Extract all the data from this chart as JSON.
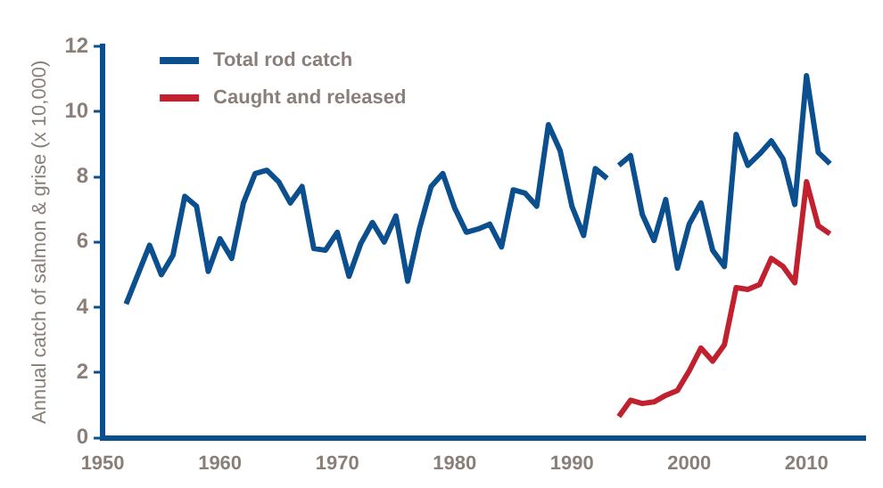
{
  "chart_data": {
    "type": "line",
    "ylabel": "Annual catch of salmon & grise (x 10,000)",
    "xlim": [
      1950,
      2015
    ],
    "xticks": [
      1950,
      1960,
      1970,
      1980,
      1990,
      2000,
      2010
    ],
    "ylim": [
      0,
      12
    ],
    "yticks": [
      0,
      2,
      4,
      6,
      8,
      10,
      12
    ],
    "grid": false,
    "legend": "top left",
    "marker": "none",
    "line_style": "solid",
    "series": [
      {
        "name": "Total rod catch",
        "color": "#0b4f8f",
        "x": [
          1952,
          1953,
          1954,
          1955,
          1956,
          1957,
          1958,
          1959,
          1960,
          1961,
          1962,
          1963,
          1964,
          1965,
          1966,
          1967,
          1968,
          1969,
          1970,
          1971,
          1972,
          1973,
          1974,
          1975,
          1976,
          1977,
          1978,
          1979,
          1980,
          1981,
          1982,
          1983,
          1984,
          1985,
          1986,
          1987,
          1988,
          1989,
          1990,
          1991,
          1992,
          1993
        ],
        "values": [
          4.1,
          5.0,
          5.9,
          5.0,
          5.6,
          7.4,
          7.1,
          5.1,
          6.1,
          5.5,
          7.2,
          8.1,
          8.2,
          7.85,
          7.2,
          7.7,
          5.8,
          5.75,
          6.3,
          4.95,
          5.95,
          6.6,
          6.0,
          6.8,
          4.8,
          6.4,
          7.7,
          8.1,
          7.05,
          6.3,
          6.4,
          6.55,
          5.85,
          7.6,
          7.5,
          7.1,
          9.6,
          8.8,
          7.1,
          6.2,
          8.25,
          7.95
        ]
      },
      {
        "color": "#0b4f8f",
        "x": [
          1994,
          1995,
          1996,
          1997,
          1998,
          1999,
          2000,
          2001,
          2002,
          2003,
          2004,
          2005,
          2006,
          2007,
          2008,
          2009,
          2010,
          2011,
          2012
        ],
        "values": [
          8.35,
          8.65,
          6.85,
          6.05,
          7.3,
          5.2,
          6.55,
          7.2,
          5.75,
          5.25,
          9.3,
          8.35,
          8.7,
          9.1,
          8.55,
          7.15,
          11.1,
          8.75,
          8.4
        ]
      },
      {
        "name": "Caught and released",
        "color": "#c1202f",
        "x": [
          1994,
          1995,
          1996,
          1997,
          1998,
          1999,
          2000,
          2001,
          2002,
          2003,
          2004,
          2005,
          2006,
          2007,
          2008,
          2009,
          2010,
          2011,
          2012
        ],
        "values": [
          0.65,
          1.15,
          1.05,
          1.1,
          1.3,
          1.45,
          2.05,
          2.75,
          2.35,
          2.85,
          4.6,
          4.55,
          4.7,
          5.5,
          5.25,
          4.75,
          7.85,
          6.5,
          6.25
        ]
      }
    ]
  }
}
